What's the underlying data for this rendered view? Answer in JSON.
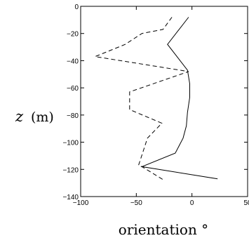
{
  "chart_data": {
    "type": "line",
    "title": "",
    "xlabel": "orientation °",
    "ylabel_symbol": "z",
    "ylabel_unit": "(m)",
    "xlim": [
      -100,
      50
    ],
    "ylim": [
      -140,
      0
    ],
    "xticks": [
      -100,
      -50,
      0,
      50
    ],
    "xtick_labels": [
      "−100",
      "−50",
      "0",
      "50"
    ],
    "yticks": [
      0,
      -20,
      -40,
      -60,
      -80,
      -100,
      -120,
      -140
    ],
    "ytick_labels": [
      "0",
      "−20",
      "−40",
      "−60",
      "−80",
      "−100",
      "−120",
      "−140"
    ],
    "grid": false,
    "legend": "none",
    "series": [
      {
        "style": "solid",
        "color": "#000000",
        "x": [
          -3,
          -22,
          -4,
          -2,
          -2,
          -4,
          -5,
          -8,
          -15,
          -45,
          23
        ],
        "y": [
          -8,
          -28,
          -47,
          -57,
          -67,
          -78,
          -88,
          -97,
          -108,
          -118,
          -127
        ]
      },
      {
        "style": "dashed",
        "color": "#000000",
        "x": [
          -18,
          -26,
          -45,
          -60,
          -87,
          -3,
          -56,
          -56,
          -27,
          -40,
          -44,
          -48,
          -45,
          -25
        ],
        "y": [
          -8,
          -17,
          -20,
          -28,
          -37,
          -48,
          -63,
          -76,
          -86,
          -97,
          -107,
          -117,
          -118,
          -128
        ]
      }
    ]
  }
}
